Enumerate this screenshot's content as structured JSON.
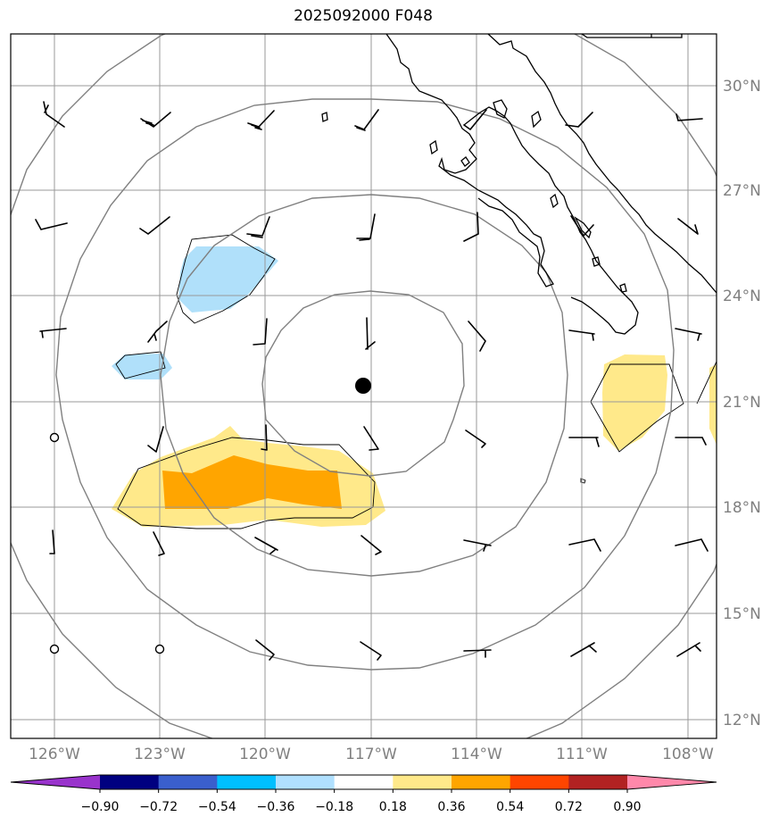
{
  "title": "2025092000 F048",
  "lat_labels": [
    "30°N",
    "27°N",
    "24°N",
    "21°N",
    "18°N",
    "15°N",
    "12°N"
  ],
  "lon_labels": [
    "126°W",
    "123°W",
    "120°W",
    "117°W",
    "114°W",
    "111°W",
    "108°W"
  ],
  "colorbar": {
    "ticks": [
      "−0.90",
      "−0.72",
      "−0.54",
      "−0.36",
      "−0.18",
      "0.18",
      "0.36",
      "0.54",
      "0.72",
      "0.90"
    ],
    "colors": [
      "#9933cc",
      "#000080",
      "#3a5fcd",
      "#00bfff",
      "#b0e0ff",
      "#ffffff",
      "#ffe98a",
      "#ffa500",
      "#ff4500",
      "#b22222",
      "#ff88aa"
    ]
  },
  "storm_center": {
    "lat": 21.4,
    "lon": -117.2
  },
  "colors": {
    "positive_light": "#ffe98a",
    "positive_mid": "#ffa500",
    "negative_light": "#b0e0fa",
    "grid": "#999999",
    "range_ring": "#808080"
  }
}
